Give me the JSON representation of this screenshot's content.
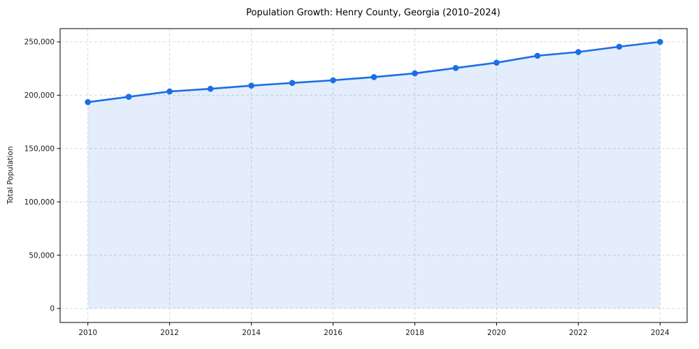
{
  "page": {
    "background": "#ffffff"
  },
  "chart_data": {
    "type": "line",
    "title": "Population Growth: Henry County, Georgia (2010–2024)",
    "xlabel": "",
    "ylabel": "Total Population",
    "x": [
      2010,
      2011,
      2012,
      2013,
      2014,
      2015,
      2016,
      2017,
      2018,
      2019,
      2020,
      2021,
      2022,
      2023,
      2024
    ],
    "series": [
      {
        "name": "Total Population",
        "values": [
          193500,
          198500,
          203500,
          206000,
          209000,
          211500,
          214000,
          217000,
          220500,
          225500,
          230500,
          237000,
          240500,
          245500,
          250000
        ]
      }
    ],
    "ylim": [
      0,
      250000
    ],
    "yticks": [
      0,
      50000,
      100000,
      150000,
      200000,
      250000
    ],
    "xticks": [
      2010,
      2012,
      2014,
      2016,
      2018,
      2020,
      2022,
      2024
    ],
    "grid": true,
    "grid_style": "dashed",
    "legend": "none",
    "area_fill": true,
    "marker": "circle",
    "colors": {
      "line": "#1b6ee4",
      "marker": "#1b6ee4",
      "area": "rgba(27,110,228,0.12)",
      "grid": "#d9d9d9",
      "spine": "#000000",
      "tick_text": "#1a1a1a"
    }
  }
}
